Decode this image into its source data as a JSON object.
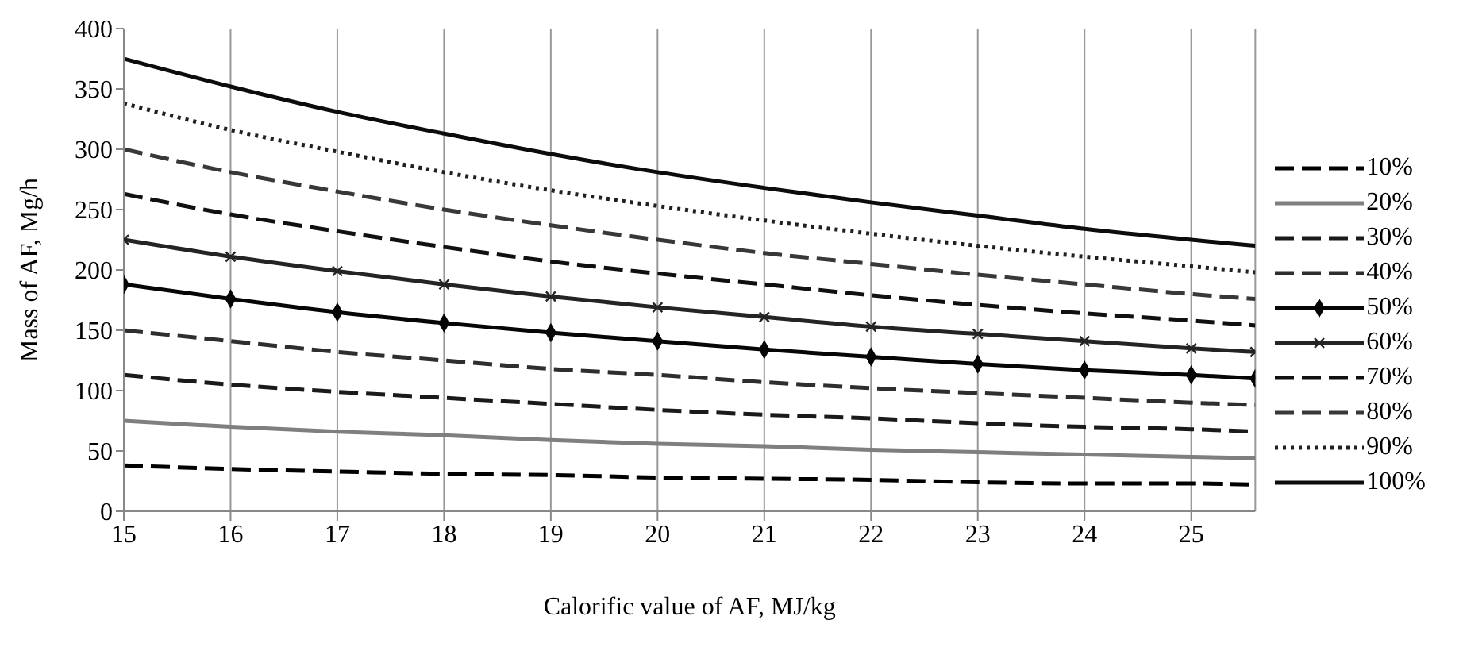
{
  "chart_data": {
    "type": "line",
    "xlabel": "Calorific value of AF, MJ/kg",
    "ylabel": "Mass of AF, Mg/h",
    "x": [
      15,
      16,
      17,
      18,
      19,
      20,
      21,
      22,
      23,
      24,
      25,
      25.6
    ],
    "xlim": [
      15,
      25.6
    ],
    "xticks": [
      15,
      16,
      17,
      18,
      19,
      20,
      21,
      22,
      23,
      24,
      25
    ],
    "ylim": [
      0,
      400
    ],
    "yticks": [
      0,
      50,
      100,
      150,
      200,
      250,
      300,
      350,
      400
    ],
    "grid": "x",
    "legend": "right",
    "marker": "none",
    "line_style": "solid",
    "series": [
      {
        "name": "10%",
        "color": "#000000",
        "line_style": "dashed",
        "values": [
          38,
          35,
          33,
          31,
          30,
          28,
          27,
          26,
          24,
          23,
          23,
          22
        ]
      },
      {
        "name": "20%",
        "color": "#7f7f7f",
        "values": [
          75,
          70,
          66,
          63,
          59,
          56,
          54,
          51,
          49,
          47,
          45,
          44
        ]
      },
      {
        "name": "30%",
        "color": "#1a1a1a",
        "line_style": "dashed",
        "values": [
          113,
          105,
          99,
          94,
          89,
          84,
          80,
          77,
          73,
          70,
          68,
          66
        ]
      },
      {
        "name": "40%",
        "color": "#2e2e2e",
        "line_style": "dashed",
        "values": [
          150,
          141,
          132,
          125,
          118,
          113,
          107,
          102,
          98,
          94,
          90,
          88
        ]
      },
      {
        "name": "50%",
        "color": "#060606",
        "marker": "diamond",
        "values": [
          188,
          176,
          165,
          156,
          148,
          141,
          134,
          128,
          122,
          117,
          113,
          110
        ]
      },
      {
        "name": "60%",
        "color": "#242424",
        "marker": "cross",
        "values": [
          225,
          211,
          199,
          188,
          178,
          169,
          161,
          153,
          147,
          141,
          135,
          132
        ]
      },
      {
        "name": "70%",
        "color": "#101010",
        "line_style": "dashed",
        "values": [
          263,
          246,
          232,
          219,
          207,
          197,
          188,
          179,
          171,
          164,
          158,
          154
        ]
      },
      {
        "name": "80%",
        "color": "#383838",
        "line_style": "dashed",
        "values": [
          300,
          281,
          265,
          250,
          237,
          225,
          214,
          205,
          196,
          188,
          180,
          176
        ]
      },
      {
        "name": "90%",
        "color": "#202020",
        "line_style": "dotted",
        "values": [
          338,
          316,
          298,
          281,
          266,
          253,
          241,
          230,
          220,
          211,
          203,
          198
        ]
      },
      {
        "name": "100%",
        "color": "#0c0c0c",
        "values": [
          375,
          352,
          331,
          313,
          296,
          281,
          268,
          256,
          245,
          234,
          225,
          220
        ]
      }
    ]
  }
}
